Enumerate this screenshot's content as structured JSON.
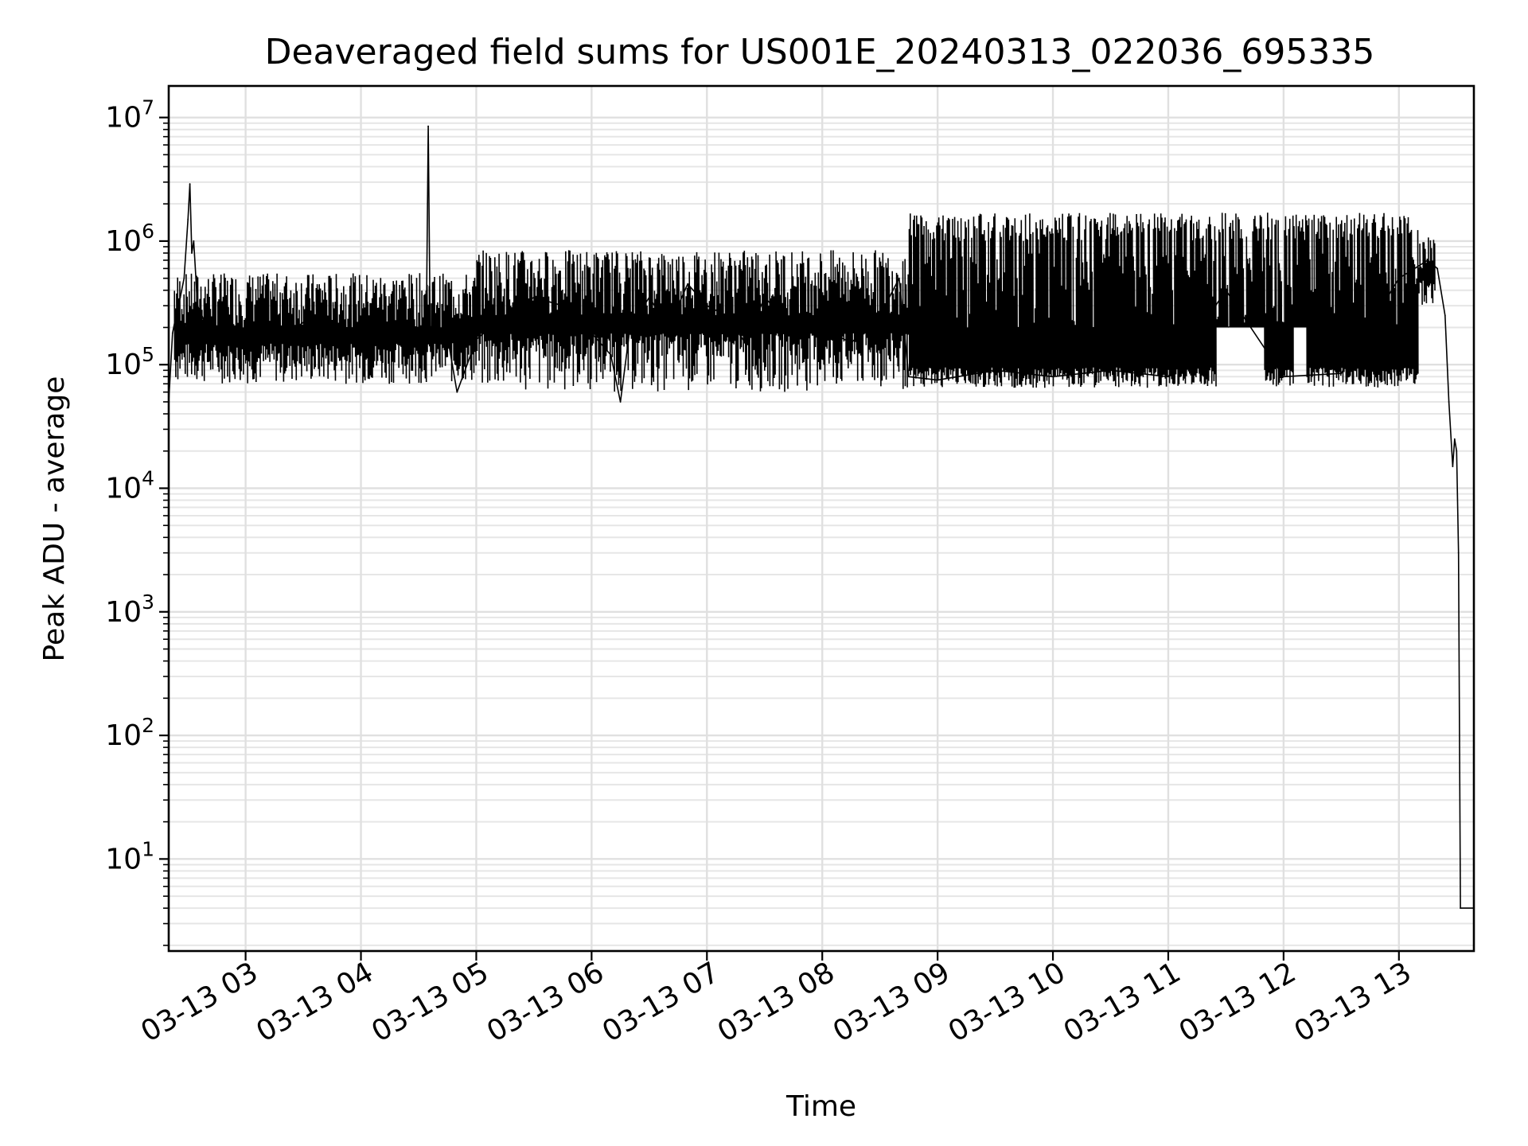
{
  "chart_data": {
    "type": "line",
    "title": "Deaveraged field sums for US001E_20240313_022036_695335",
    "xlabel": "Time",
    "ylabel": "Peak ADU - average",
    "yscale": "log",
    "ylim": [
      1.8,
      18000000
    ],
    "xlim": [
      "2024-03-13 02:20",
      "2024-03-13 13:39"
    ],
    "grid": true,
    "x_ticks": [
      "03-13 03",
      "03-13 04",
      "03-13 05",
      "03-13 06",
      "03-13 07",
      "03-13 08",
      "03-13 09",
      "03-13 10",
      "03-13 11",
      "03-13 12",
      "03-13 13"
    ],
    "y_ticks": [
      {
        "base": "10",
        "exp": "1"
      },
      {
        "base": "10",
        "exp": "2"
      },
      {
        "base": "10",
        "exp": "3"
      },
      {
        "base": "10",
        "exp": "4"
      },
      {
        "base": "10",
        "exp": "5"
      },
      {
        "base": "10",
        "exp": "6"
      },
      {
        "base": "10",
        "exp": "7"
      }
    ],
    "series": [
      {
        "color": "#000000",
        "points": [
          [
            "2024-03-13 02:20",
            50000
          ],
          [
            "2024-03-13 02:22",
            180000
          ],
          [
            "2024-03-13 02:24",
            260000
          ],
          [
            "2024-03-13 02:26",
            350000
          ],
          [
            "2024-03-13 02:28",
            500000
          ],
          [
            "2024-03-13 02:30",
            1500000
          ],
          [
            "2024-03-13 02:31",
            2900000
          ],
          [
            "2024-03-13 02:32",
            800000
          ],
          [
            "2024-03-13 02:33",
            1000000
          ],
          [
            "2024-03-13 02:35",
            300000
          ],
          [
            "2024-03-13 02:40",
            200000
          ],
          [
            "2024-03-13 02:45",
            150000
          ],
          [
            "2024-03-13 02:50",
            250000
          ],
          [
            "2024-03-13 02:55",
            180000
          ],
          [
            "2024-03-13 03:00",
            160000
          ],
          [
            "2024-03-13 03:10",
            200000
          ],
          [
            "2024-03-13 03:20",
            170000
          ],
          [
            "2024-03-13 03:30",
            220000
          ],
          [
            "2024-03-13 03:40",
            180000
          ],
          [
            "2024-03-13 03:50",
            200000
          ],
          [
            "2024-03-13 04:00",
            160000
          ],
          [
            "2024-03-13 04:10",
            180000
          ],
          [
            "2024-03-13 04:20",
            150000
          ],
          [
            "2024-03-13 04:30",
            200000
          ],
          [
            "2024-03-13 04:34",
            200000
          ],
          [
            "2024-03-13 04:35",
            8500000
          ],
          [
            "2024-03-13 04:36",
            200000
          ],
          [
            "2024-03-13 04:45",
            170000
          ],
          [
            "2024-03-13 04:50",
            60000
          ],
          [
            "2024-03-13 05:00",
            160000
          ],
          [
            "2024-03-13 05:15",
            250000
          ],
          [
            "2024-03-13 05:30",
            350000
          ],
          [
            "2024-03-13 05:45",
            300000
          ],
          [
            "2024-03-13 06:00",
            180000
          ],
          [
            "2024-03-13 06:10",
            120000
          ],
          [
            "2024-03-13 06:15",
            50000
          ],
          [
            "2024-03-13 06:20",
            200000
          ],
          [
            "2024-03-13 06:30",
            350000
          ],
          [
            "2024-03-13 06:40",
            200000
          ],
          [
            "2024-03-13 06:50",
            450000
          ],
          [
            "2024-03-13 07:00",
            300000
          ],
          [
            "2024-03-13 07:10",
            250000
          ],
          [
            "2024-03-13 07:20",
            150000
          ],
          [
            "2024-03-13 07:30",
            350000
          ],
          [
            "2024-03-13 07:45",
            200000
          ],
          [
            "2024-03-13 08:00",
            200000
          ],
          [
            "2024-03-13 08:15",
            150000
          ],
          [
            "2024-03-13 08:30",
            250000
          ],
          [
            "2024-03-13 08:40",
            500000
          ],
          [
            "2024-03-13 08:45",
            80000
          ],
          [
            "2024-03-13 09:00",
            75000
          ],
          [
            "2024-03-13 09:30",
            90000
          ],
          [
            "2024-03-13 10:00",
            80000
          ],
          [
            "2024-03-13 10:30",
            90000
          ],
          [
            "2024-03-13 11:00",
            80000
          ],
          [
            "2024-03-13 11:30",
            400000
          ],
          [
            "2024-03-13 12:00",
            80000
          ],
          [
            "2024-03-13 12:30",
            85000
          ],
          [
            "2024-03-13 13:00",
            500000
          ],
          [
            "2024-03-13 13:15",
            700000
          ],
          [
            "2024-03-13 13:20",
            600000
          ],
          [
            "2024-03-13 13:24",
            250000
          ],
          [
            "2024-03-13 13:26",
            50000
          ],
          [
            "2024-03-13 13:28",
            15000
          ],
          [
            "2024-03-13 13:29",
            25000
          ],
          [
            "2024-03-13 13:30",
            20000
          ],
          [
            "2024-03-13 13:31",
            3000
          ],
          [
            "2024-03-13 13:32",
            4
          ],
          [
            "2024-03-13 13:39",
            4
          ]
        ]
      }
    ]
  }
}
